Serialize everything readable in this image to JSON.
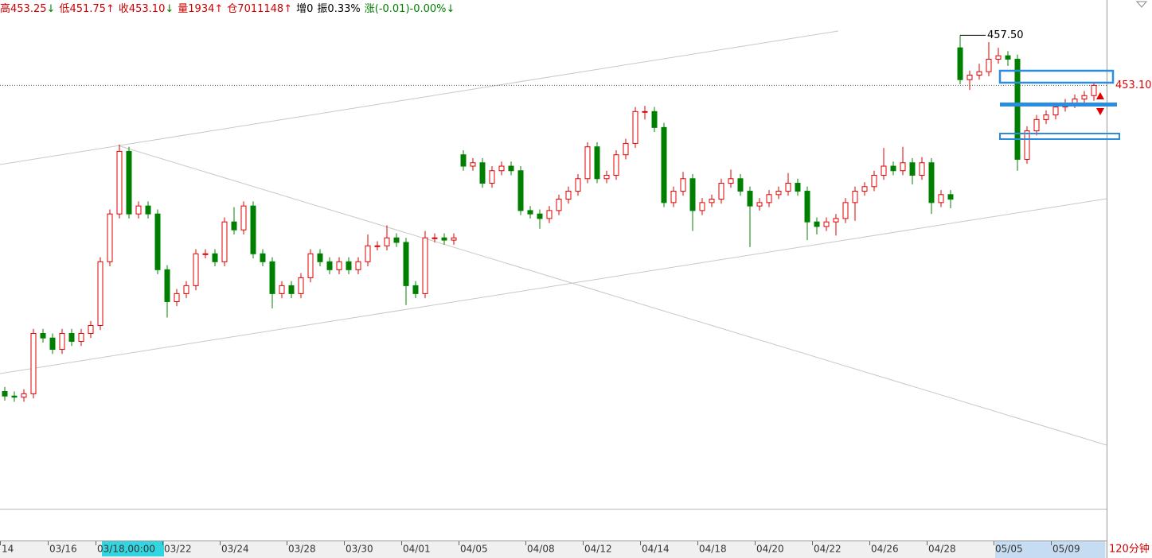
{
  "chart_data": {
    "type": "candlestick",
    "info_bar": [
      {
        "label": "高",
        "value": "453.25",
        "arrow": "↓",
        "color": "#cc0000"
      },
      {
        "label": "低",
        "value": "451.75",
        "arrow": "↑",
        "color": "#cc0000"
      },
      {
        "label": "收",
        "value": "453.10",
        "arrow": "↓",
        "color": "#cc0000"
      },
      {
        "label": "量",
        "value": "1934",
        "arrow": "↑",
        "color": "#cc0000"
      },
      {
        "label": "仓",
        "value": "7011148",
        "arrow": "↑",
        "color": "#cc0000"
      },
      {
        "label": "增",
        "value": "0",
        "color": "#000000"
      },
      {
        "label": "振",
        "value": "0.33%",
        "color": "#000000"
      },
      {
        "label": "涨",
        "value": "(-0.01)-0.00%",
        "arrow": "↓",
        "color": "#008000"
      }
    ],
    "period": "120分钟",
    "up_color": "#e00000",
    "down_color": "#008000",
    "ylim": [
      415.9,
      460.6
    ],
    "last_price": {
      "value": 453.1,
      "label": "453.10"
    },
    "high_mark": {
      "value": 457.5,
      "label": "457.50"
    },
    "categories": [
      "14",
      null,
      null,
      null,
      null,
      "03/16",
      null,
      null,
      null,
      null,
      "03/18,00:00",
      null,
      null,
      null,
      null,
      null,
      null,
      "03/22",
      null,
      null,
      null,
      null,
      null,
      "03/24",
      null,
      null,
      null,
      null,
      null,
      null,
      "03/28",
      null,
      null,
      null,
      null,
      null,
      "03/30",
      null,
      null,
      null,
      null,
      null,
      "04/01",
      null,
      null,
      null,
      null,
      null,
      "04/05",
      null,
      null,
      null,
      null,
      null,
      null,
      "04/08",
      null,
      null,
      null,
      null,
      null,
      "04/12",
      null,
      null,
      null,
      null,
      null,
      "04/14",
      null,
      null,
      null,
      null,
      null,
      "04/18",
      null,
      null,
      null,
      null,
      null,
      "04/20",
      null,
      null,
      null,
      null,
      null,
      "04/22",
      null,
      null,
      null,
      null,
      null,
      "04/26",
      null,
      null,
      null,
      null,
      null,
      "04/28",
      null,
      null,
      null,
      null,
      null,
      null,
      "05/05",
      null,
      null,
      null,
      null,
      null,
      "05/09",
      null,
      null,
      null,
      null
    ],
    "ohlc": [
      [
        426.2,
        426.6,
        425.4,
        425.8
      ],
      [
        425.8,
        426.2,
        425.3,
        425.7
      ],
      [
        425.7,
        426.4,
        425.3,
        426.0
      ],
      [
        426.0,
        431.7,
        425.6,
        431.3
      ],
      [
        431.3,
        431.7,
        430.5,
        430.9
      ],
      [
        430.9,
        431.3,
        429.5,
        429.9
      ],
      [
        429.9,
        431.7,
        429.5,
        431.3
      ],
      [
        431.3,
        431.7,
        430.2,
        430.6
      ],
      [
        430.6,
        431.7,
        430.2,
        431.3
      ],
      [
        431.3,
        432.4,
        430.9,
        432.0
      ],
      [
        432.0,
        438.0,
        431.6,
        437.6
      ],
      [
        437.6,
        442.2,
        437.2,
        441.8
      ],
      [
        441.8,
        447.9,
        441.4,
        447.3
      ],
      [
        447.3,
        447.7,
        441.4,
        441.8
      ],
      [
        441.8,
        442.9,
        441.4,
        442.5
      ],
      [
        442.5,
        442.9,
        441.4,
        441.8
      ],
      [
        441.8,
        442.2,
        436.5,
        436.9
      ],
      [
        436.9,
        437.3,
        432.7,
        434.1
      ],
      [
        434.1,
        435.2,
        433.7,
        434.8
      ],
      [
        434.8,
        435.9,
        434.4,
        435.5
      ],
      [
        435.5,
        438.7,
        435.1,
        438.3
      ],
      [
        438.3,
        438.7,
        437.9,
        438.3
      ],
      [
        438.3,
        438.7,
        437.2,
        437.6
      ],
      [
        437.6,
        441.5,
        437.2,
        441.1
      ],
      [
        441.1,
        442.4,
        440.0,
        440.4
      ],
      [
        440.4,
        442.9,
        440.0,
        442.5
      ],
      [
        442.5,
        442.9,
        437.9,
        438.3
      ],
      [
        438.3,
        438.7,
        437.2,
        437.6
      ],
      [
        437.6,
        438.0,
        433.5,
        434.8
      ],
      [
        434.8,
        435.9,
        434.4,
        435.5
      ],
      [
        435.5,
        435.9,
        434.4,
        434.8
      ],
      [
        434.8,
        436.6,
        434.4,
        436.2
      ],
      [
        436.2,
        438.7,
        435.8,
        438.3
      ],
      [
        438.3,
        438.7,
        437.2,
        437.6
      ],
      [
        437.6,
        438.0,
        436.5,
        436.9
      ],
      [
        436.9,
        438.0,
        436.5,
        437.6
      ],
      [
        437.6,
        438.0,
        436.5,
        436.9
      ],
      [
        436.9,
        438.0,
        436.5,
        437.6
      ],
      [
        437.6,
        440.0,
        437.2,
        439.0
      ],
      [
        439.0,
        439.4,
        438.6,
        439.0
      ],
      [
        439.0,
        440.8,
        438.6,
        439.7
      ],
      [
        439.7,
        440.1,
        438.9,
        439.3
      ],
      [
        439.3,
        439.7,
        433.8,
        435.5
      ],
      [
        435.5,
        435.9,
        434.4,
        434.8
      ],
      [
        434.8,
        440.3,
        434.4,
        439.7
      ],
      [
        439.7,
        440.1,
        439.3,
        439.7
      ],
      [
        439.7,
        440.1,
        439.1,
        439.5
      ],
      [
        439.5,
        440.1,
        439.1,
        439.7
      ],
      [
        447.0,
        447.4,
        445.6,
        446.0
      ],
      [
        446.0,
        446.7,
        445.6,
        446.3
      ],
      [
        446.3,
        446.7,
        444.1,
        444.5
      ],
      [
        444.5,
        446.0,
        444.1,
        445.6
      ],
      [
        445.6,
        446.4,
        445.2,
        446.0
      ],
      [
        446.0,
        446.4,
        445.2,
        445.6
      ],
      [
        445.6,
        446.0,
        441.7,
        442.1
      ],
      [
        442.1,
        442.5,
        441.4,
        441.8
      ],
      [
        441.8,
        442.2,
        440.5,
        441.4
      ],
      [
        441.4,
        442.5,
        441.0,
        442.1
      ],
      [
        442.1,
        443.5,
        441.7,
        443.1
      ],
      [
        443.1,
        444.2,
        442.7,
        443.8
      ],
      [
        443.8,
        445.3,
        443.4,
        444.9
      ],
      [
        444.9,
        448.1,
        444.5,
        447.7
      ],
      [
        447.7,
        448.1,
        444.5,
        444.9
      ],
      [
        444.9,
        445.6,
        444.5,
        445.2
      ],
      [
        445.2,
        447.4,
        444.8,
        447.0
      ],
      [
        447.0,
        448.4,
        446.6,
        448.0
      ],
      [
        448.0,
        451.2,
        447.6,
        450.8
      ],
      [
        450.8,
        451.3,
        450.1,
        450.8
      ],
      [
        450.8,
        451.2,
        449.0,
        449.4
      ],
      [
        449.4,
        449.8,
        442.4,
        442.8
      ],
      [
        442.8,
        444.2,
        442.4,
        443.8
      ],
      [
        443.8,
        445.5,
        443.4,
        444.9
      ],
      [
        444.9,
        445.3,
        440.3,
        442.1
      ],
      [
        442.1,
        443.2,
        441.7,
        442.8
      ],
      [
        442.8,
        443.5,
        442.4,
        443.1
      ],
      [
        443.1,
        444.9,
        442.7,
        444.5
      ],
      [
        444.5,
        445.7,
        444.1,
        444.9
      ],
      [
        444.9,
        445.3,
        443.4,
        443.8
      ],
      [
        443.8,
        444.2,
        438.9,
        442.5
      ],
      [
        442.5,
        443.2,
        442.1,
        442.8
      ],
      [
        442.8,
        443.9,
        442.4,
        443.5
      ],
      [
        443.5,
        444.2,
        443.1,
        443.8
      ],
      [
        443.8,
        445.4,
        443.4,
        444.5
      ],
      [
        444.5,
        444.9,
        443.4,
        443.8
      ],
      [
        443.8,
        444.2,
        439.5,
        441.1
      ],
      [
        441.1,
        441.5,
        440.0,
        440.7
      ],
      [
        440.7,
        441.5,
        440.3,
        441.1
      ],
      [
        441.1,
        441.8,
        439.9,
        441.4
      ],
      [
        441.4,
        443.2,
        441.0,
        442.8
      ],
      [
        442.8,
        444.2,
        441.2,
        443.8
      ],
      [
        443.8,
        444.6,
        443.4,
        444.2
      ],
      [
        444.2,
        445.6,
        443.8,
        445.2
      ],
      [
        445.2,
        447.6,
        444.8,
        446.0
      ],
      [
        446.0,
        446.4,
        445.2,
        445.6
      ],
      [
        445.6,
        447.7,
        445.2,
        446.3
      ],
      [
        446.3,
        446.7,
        444.4,
        445.2
      ],
      [
        445.2,
        446.8,
        444.8,
        446.3
      ],
      [
        446.3,
        446.7,
        441.8,
        442.8
      ],
      [
        442.8,
        443.9,
        442.4,
        443.5
      ],
      [
        443.5,
        443.9,
        442.3,
        443.1
      ],
      [
        456.4,
        457.5,
        453.2,
        453.6
      ],
      [
        453.6,
        454.4,
        452.7,
        454.0
      ],
      [
        454.0,
        455.0,
        453.6,
        454.3
      ],
      [
        454.3,
        456.9,
        453.9,
        455.4
      ],
      [
        455.4,
        456.4,
        455.0,
        455.7
      ],
      [
        455.7,
        456.1,
        454.8,
        455.4
      ],
      [
        455.4,
        455.8,
        445.6,
        446.6
      ],
      [
        446.6,
        449.5,
        446.2,
        449.1
      ],
      [
        449.1,
        450.5,
        448.7,
        450.1
      ],
      [
        450.1,
        450.9,
        449.7,
        450.5
      ],
      [
        450.5,
        451.6,
        450.1,
        451.2
      ],
      [
        451.2,
        451.9,
        450.8,
        451.5
      ],
      [
        451.5,
        452.3,
        451.1,
        451.9
      ],
      [
        451.9,
        452.6,
        451.5,
        452.2
      ],
      [
        452.2,
        453.25,
        451.75,
        453.1
      ]
    ]
  }
}
